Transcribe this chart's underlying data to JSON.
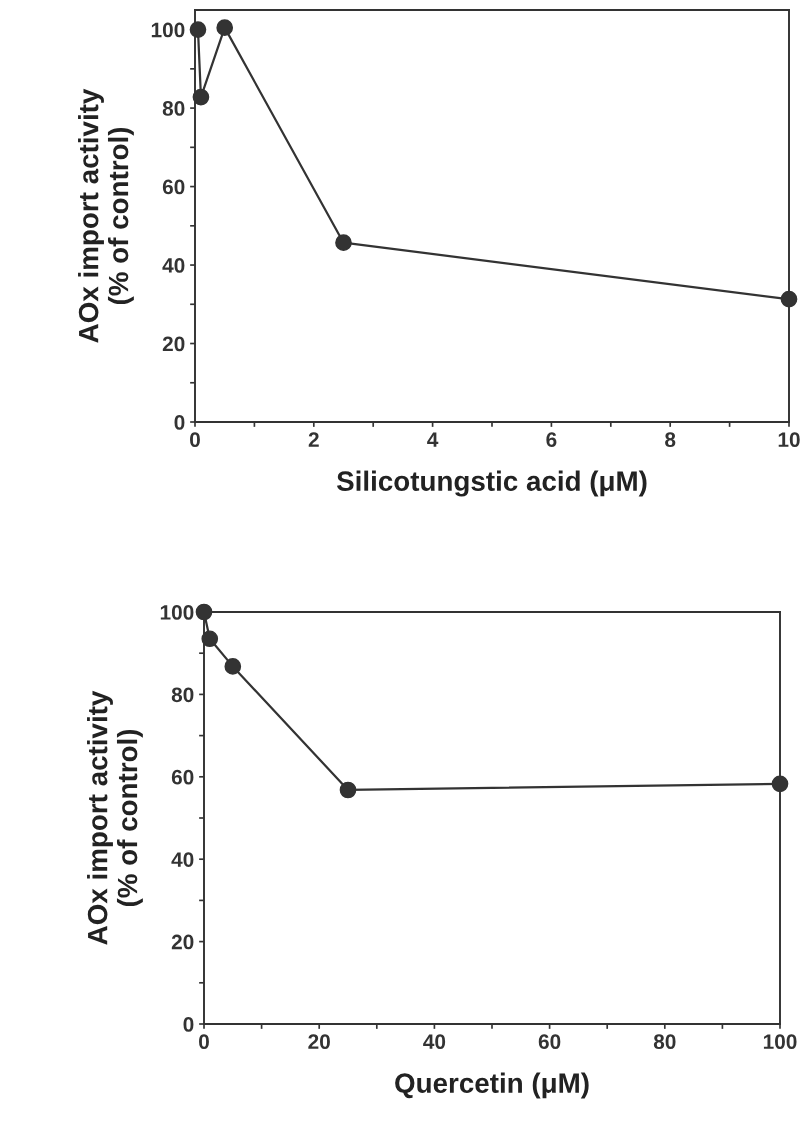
{
  "chart_data": [
    {
      "type": "line",
      "xlabel": "Silicotungstic acid (μM)",
      "ylabel": "AOx import activity\n(% of control)",
      "marker": "circle",
      "line_style": "solid",
      "grid": false,
      "legend": false,
      "x": [
        0.05,
        0.1,
        0.5,
        2.5,
        10
      ],
      "series": [
        {
          "color": "#333333",
          "values": [
            100,
            82.8,
            100.5,
            45.7,
            31.3
          ]
        }
      ],
      "xlim": [
        0,
        10
      ],
      "ylim": [
        0,
        105
      ],
      "xticks": [
        0,
        {
          "value": 1,
          "label": null
        },
        2,
        {
          "value": 3,
          "label": null
        },
        4,
        {
          "value": 5,
          "label": null
        },
        6,
        {
          "value": 7,
          "label": null
        },
        8,
        {
          "value": 9,
          "label": null
        },
        10
      ],
      "yticks": [
        0,
        {
          "value": 10,
          "label": null
        },
        20,
        {
          "value": 30,
          "label": null
        },
        40,
        {
          "value": 50,
          "label": null
        },
        60,
        {
          "value": 70,
          "label": null
        },
        80,
        {
          "value": 90,
          "label": null
        },
        100
      ]
    },
    {
      "type": "line",
      "xlabel": "Quercetin (μM)",
      "ylabel": "AOx import activity\n(% of control)",
      "marker": "circle",
      "line_style": "solid",
      "grid": false,
      "legend": false,
      "x": [
        0,
        1,
        5,
        25,
        100
      ],
      "series": [
        {
          "color": "#333333",
          "values": [
            100,
            93.5,
            86.8,
            56.8,
            58.3
          ]
        }
      ],
      "xlim": [
        0,
        100
      ],
      "ylim": [
        0,
        100
      ],
      "xticks": [
        0,
        {
          "value": 10,
          "label": null
        },
        20,
        {
          "value": 30,
          "label": null
        },
        40,
        {
          "value": 50,
          "label": null
        },
        60,
        {
          "value": 70,
          "label": null
        },
        80,
        {
          "value": 90,
          "label": null
        },
        100
      ],
      "yticks": [
        0,
        {
          "value": 10,
          "label": null
        },
        20,
        {
          "value": 30,
          "label": null
        },
        40,
        {
          "value": 50,
          "label": null
        },
        60,
        {
          "value": 70,
          "label": null
        },
        80,
        {
          "value": 90,
          "label": null
        },
        100
      ]
    }
  ]
}
